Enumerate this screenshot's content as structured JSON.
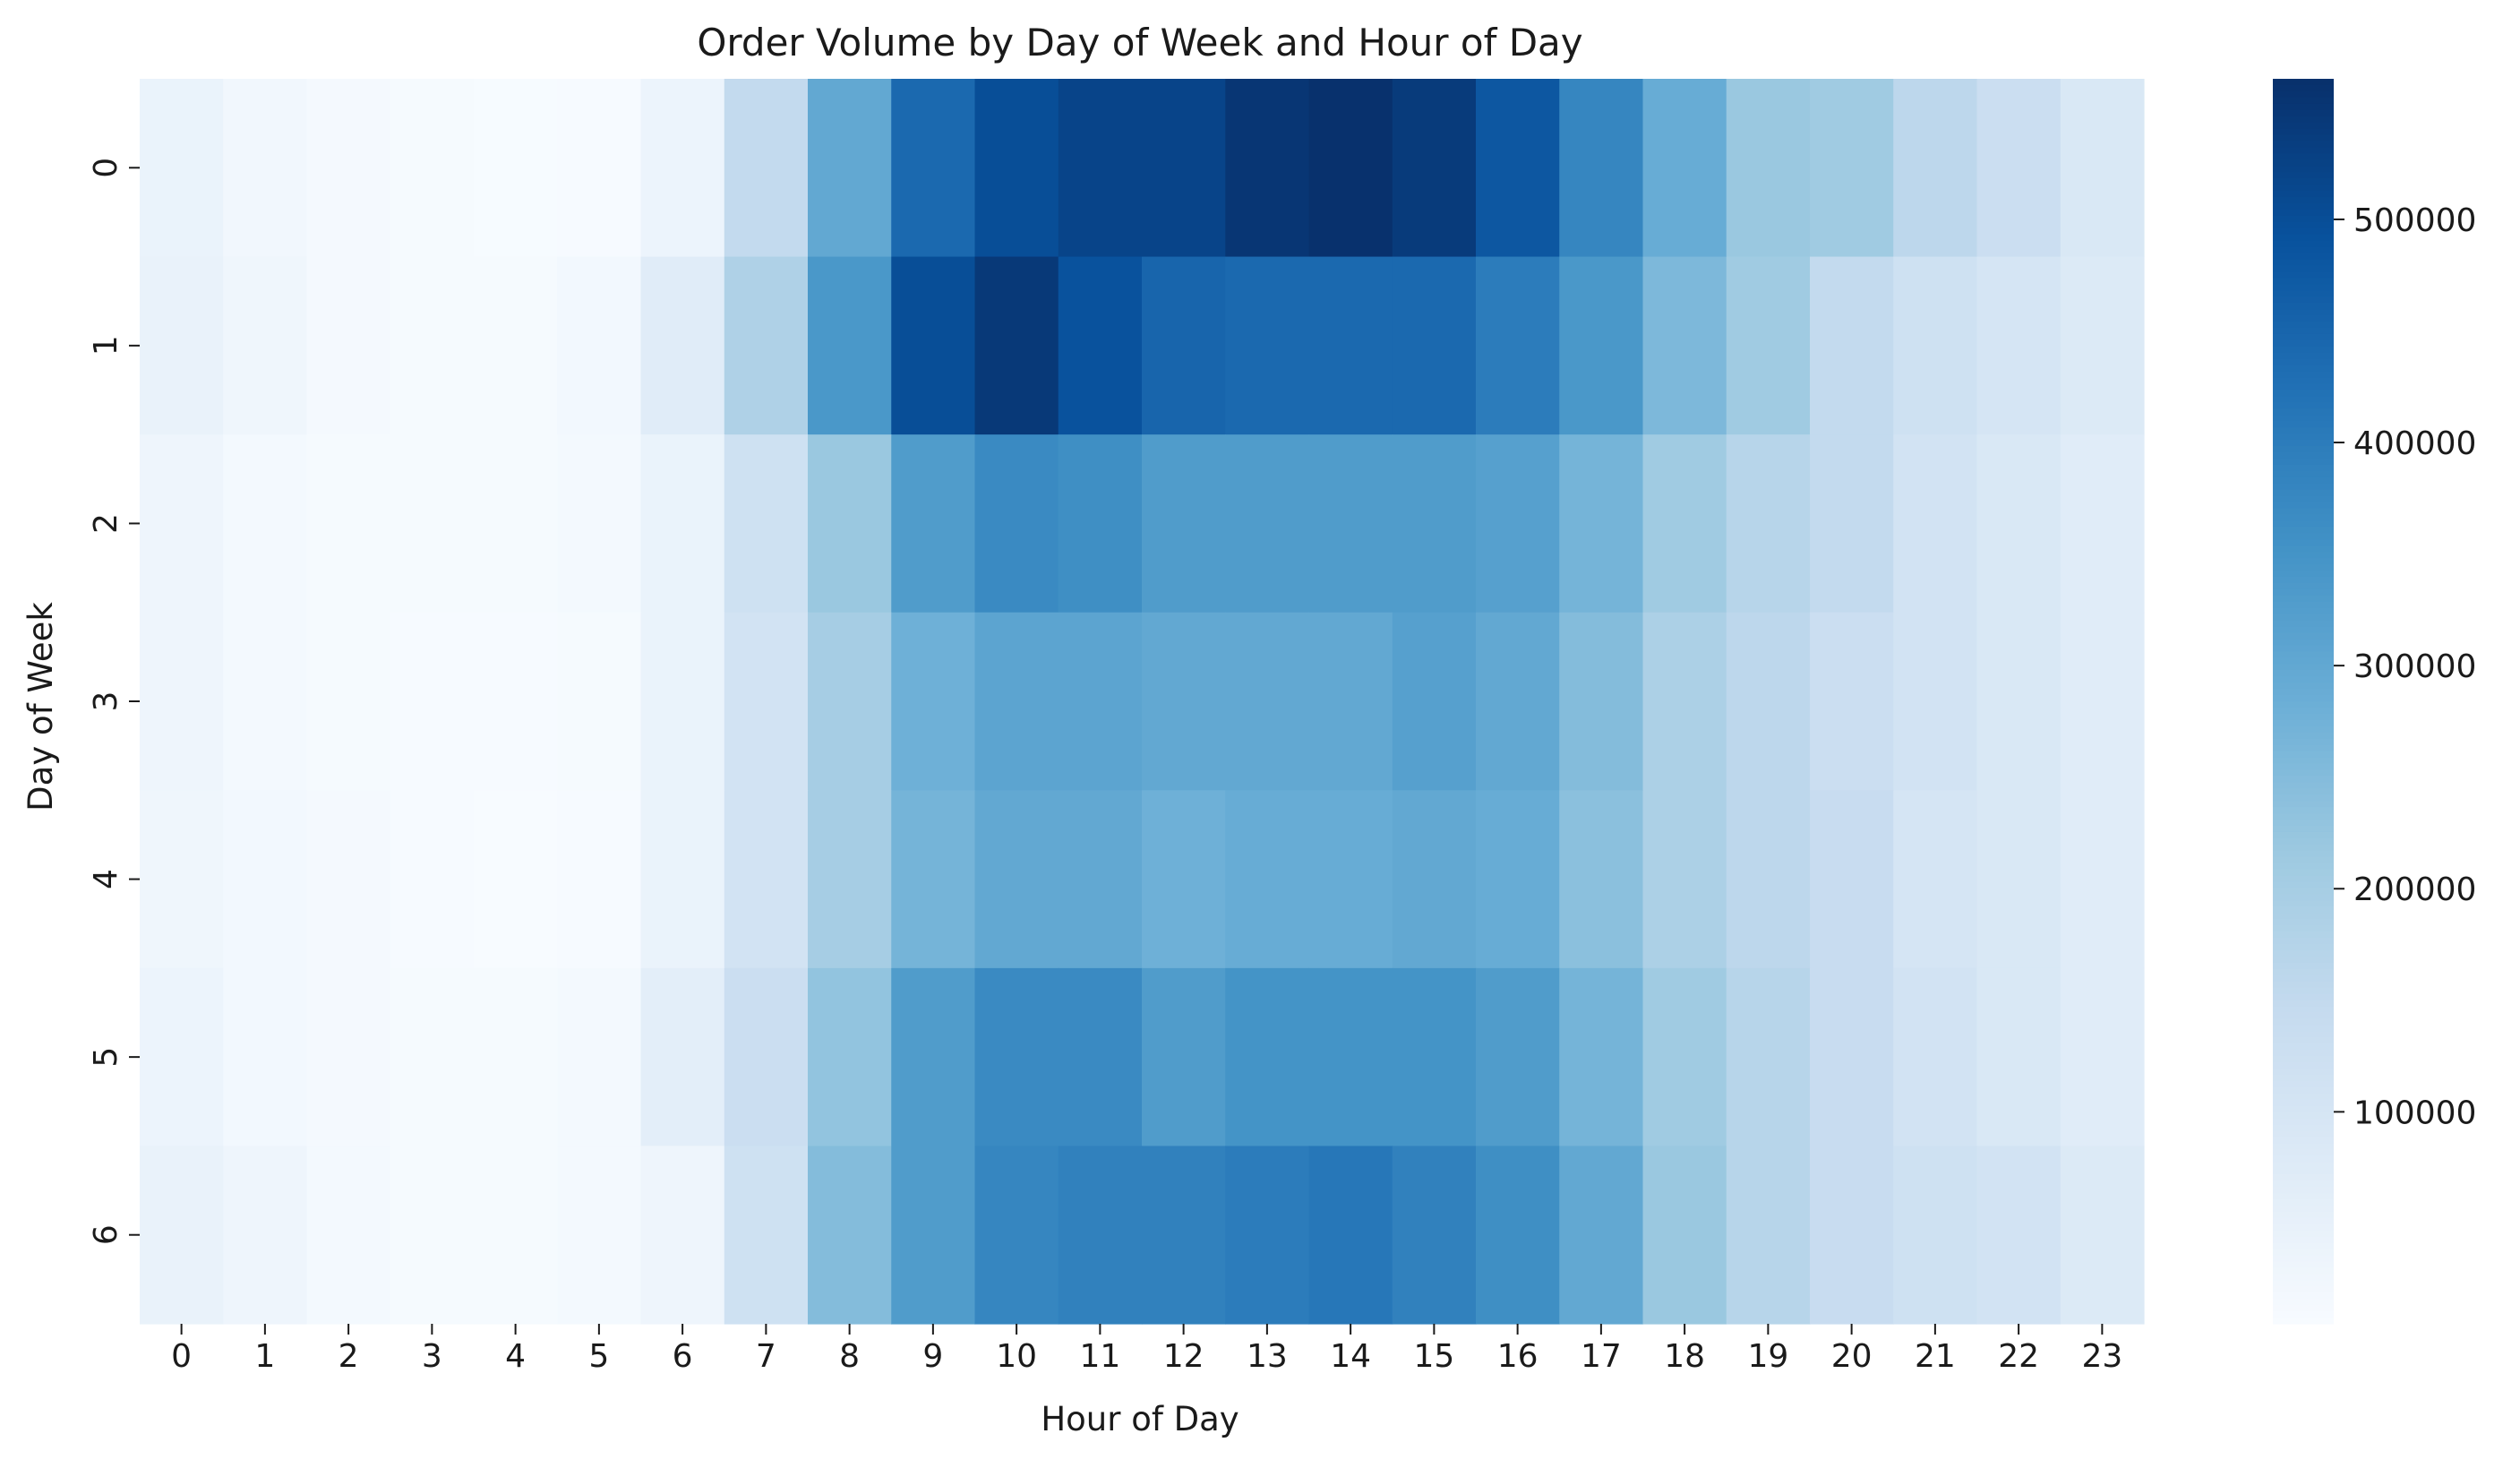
{
  "chart_data": {
    "type": "heatmap",
    "title": "Order Volume by Day of Week and Hour of Day",
    "xlabel": "Hour of Day",
    "ylabel": "Day of Week",
    "x_categories": [
      "0",
      "1",
      "2",
      "3",
      "4",
      "5",
      "6",
      "7",
      "8",
      "9",
      "10",
      "11",
      "12",
      "13",
      "14",
      "15",
      "16",
      "17",
      "18",
      "19",
      "20",
      "21",
      "22",
      "23"
    ],
    "y_categories": [
      "0",
      "1",
      "2",
      "3",
      "4",
      "5",
      "6"
    ],
    "values": [
      [
        40000,
        22000,
        13000,
        10000,
        7000,
        7500,
        35000,
        150000,
        300000,
        440000,
        500000,
        520000,
        520000,
        550000,
        560000,
        540000,
        480000,
        380000,
        290000,
        220000,
        210000,
        160000,
        130000,
        90000
      ],
      [
        45000,
        27000,
        13000,
        10000,
        10000,
        18000,
        70000,
        185000,
        340000,
        500000,
        545000,
        490000,
        450000,
        440000,
        440000,
        440000,
        400000,
        340000,
        260000,
        210000,
        150000,
        120000,
        100000,
        80000
      ],
      [
        30000,
        15000,
        11000,
        10000,
        10000,
        15000,
        40000,
        120000,
        220000,
        330000,
        370000,
        360000,
        330000,
        330000,
        330000,
        330000,
        320000,
        270000,
        210000,
        170000,
        150000,
        110000,
        90000,
        70000
      ],
      [
        30000,
        15000,
        10000,
        9000,
        8000,
        10000,
        40000,
        110000,
        200000,
        280000,
        310000,
        310000,
        300000,
        300000,
        300000,
        320000,
        300000,
        250000,
        190000,
        160000,
        130000,
        110000,
        90000,
        70000
      ],
      [
        28000,
        18000,
        12000,
        8000,
        6000,
        8000,
        40000,
        110000,
        200000,
        270000,
        300000,
        300000,
        280000,
        290000,
        290000,
        300000,
        290000,
        240000,
        190000,
        160000,
        140000,
        100000,
        90000,
        70000
      ],
      [
        35000,
        18000,
        12000,
        10000,
        10000,
        15000,
        60000,
        130000,
        230000,
        330000,
        370000,
        370000,
        330000,
        350000,
        350000,
        350000,
        330000,
        270000,
        210000,
        170000,
        140000,
        110000,
        90000,
        70000
      ],
      [
        45000,
        30000,
        15000,
        10000,
        10000,
        15000,
        30000,
        120000,
        250000,
        330000,
        380000,
        390000,
        390000,
        400000,
        410000,
        390000,
        360000,
        300000,
        220000,
        170000,
        140000,
        120000,
        110000,
        80000
      ]
    ],
    "colorbar": {
      "min": 5000,
      "max": 563000,
      "ticks": [
        100000,
        200000,
        300000,
        400000,
        500000
      ],
      "tick_labels": [
        "100000",
        "200000",
        "300000",
        "400000",
        "500000"
      ],
      "colormap": "Blues"
    },
    "grid": false,
    "legend": "colorbar-right"
  }
}
